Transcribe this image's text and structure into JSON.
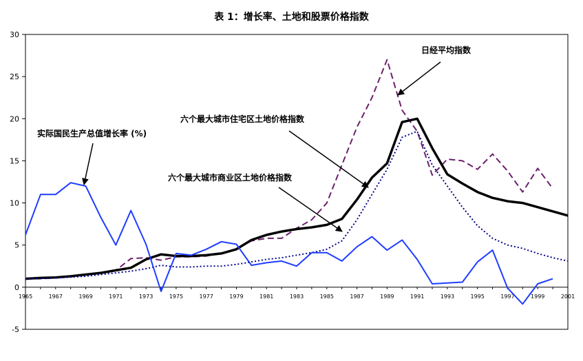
{
  "chart_data": {
    "type": "line",
    "title": "表 1：增长率、土地和股票价格指数",
    "xlabel": "",
    "ylabel": "",
    "ylim": [
      -5,
      30
    ],
    "xlim": [
      1965,
      2001
    ],
    "y_ticks": [
      -5,
      0,
      5,
      10,
      15,
      20,
      25,
      30
    ],
    "x_ticks": [
      "1965",
      "1967",
      "1969",
      "1971",
      "1973",
      "1975",
      "1977",
      "1979",
      "1981",
      "1983",
      "1985",
      "1987",
      "1989",
      "1991",
      "1993",
      "1995",
      "1997",
      "1999",
      "2001"
    ],
    "grid": false,
    "series": [
      {
        "key": "nikkei",
        "color": "#6b1f6b",
        "dash": "dashed",
        "x": [
          1965,
          1966,
          1967,
          1968,
          1969,
          1970,
          1971,
          1972,
          1973,
          1974,
          1975,
          1976,
          1977,
          1978,
          1979,
          1980,
          1981,
          1982,
          1983,
          1984,
          1985,
          1986,
          1987,
          1988,
          1989,
          1990,
          1991,
          1992,
          1993,
          1994,
          1995,
          1996,
          1997,
          1998,
          1999,
          2000
        ],
        "values": [
          1.0,
          1.0,
          1.1,
          1.3,
          1.5,
          1.7,
          2.0,
          3.4,
          3.5,
          3.2,
          3.6,
          3.6,
          3.7,
          4.0,
          4.5,
          5.5,
          5.8,
          5.8,
          7.0,
          8.0,
          10.0,
          14.5,
          19.0,
          22.5,
          27.0,
          21.0,
          18.5,
          13.3,
          15.2,
          15.0,
          14.0,
          15.8,
          13.8,
          11.3,
          14.1,
          11.7
        ]
      },
      {
        "key": "residential",
        "color": "#000000",
        "dash": "solid",
        "x": [
          1965,
          1966,
          1967,
          1968,
          1969,
          1970,
          1971,
          1972,
          1973,
          1974,
          1975,
          1976,
          1977,
          1978,
          1979,
          1980,
          1981,
          1982,
          1983,
          1984,
          1985,
          1986,
          1987,
          1988,
          1989,
          1990,
          1991,
          1992,
          1993,
          1994,
          1995,
          1996,
          1997,
          1998,
          1999,
          2000,
          2001
        ],
        "values": [
          1.0,
          1.1,
          1.15,
          1.3,
          1.5,
          1.7,
          2.0,
          2.3,
          3.3,
          3.9,
          3.7,
          3.7,
          3.8,
          4.0,
          4.5,
          5.6,
          6.2,
          6.6,
          6.9,
          7.1,
          7.4,
          8.1,
          10.4,
          13.0,
          14.7,
          19.6,
          20.0,
          16.5,
          13.4,
          12.3,
          11.3,
          10.6,
          10.2,
          10.0,
          9.5,
          9.0,
          8.5
        ]
      },
      {
        "key": "commercial",
        "color": "#00008b",
        "dash": "dotted",
        "x": [
          1965,
          1966,
          1967,
          1968,
          1969,
          1970,
          1971,
          1972,
          1973,
          1974,
          1975,
          1976,
          1977,
          1978,
          1979,
          1980,
          1981,
          1982,
          1983,
          1984,
          1985,
          1986,
          1987,
          1988,
          1989,
          1990,
          1991,
          1992,
          1993,
          1994,
          1995,
          1996,
          1997,
          1998,
          1999,
          2000,
          2001
        ],
        "values": [
          1.0,
          1.05,
          1.1,
          1.2,
          1.3,
          1.5,
          1.7,
          1.9,
          2.2,
          2.6,
          2.4,
          2.4,
          2.5,
          2.5,
          2.7,
          3.0,
          3.3,
          3.5,
          3.8,
          4.1,
          4.5,
          5.5,
          8.0,
          11.0,
          14.0,
          17.8,
          18.5,
          14.5,
          12.0,
          9.5,
          7.3,
          5.8,
          5.0,
          4.6,
          4.0,
          3.5,
          3.1
        ]
      },
      {
        "key": "gdp",
        "color": "#1e3cff",
        "dash": "solid",
        "x": [
          1965,
          1966,
          1967,
          1968,
          1969,
          1970,
          1971,
          1972,
          1973,
          1974,
          1975,
          1976,
          1977,
          1978,
          1979,
          1980,
          1981,
          1982,
          1983,
          1984,
          1985,
          1986,
          1987,
          1988,
          1989,
          1990,
          1991,
          1992,
          1993,
          1994,
          1995,
          1996,
          1997,
          1998,
          1999,
          2000
        ],
        "values": [
          6.2,
          11.0,
          11.0,
          12.4,
          12.0,
          8.3,
          5.0,
          9.1,
          5.1,
          -0.5,
          4.0,
          3.8,
          4.5,
          5.4,
          5.1,
          2.6,
          2.9,
          3.1,
          2.5,
          4.1,
          4.1,
          3.1,
          4.8,
          6.0,
          4.4,
          5.6,
          3.3,
          0.4,
          0.5,
          0.6,
          3.0,
          4.4,
          -0.1,
          -2.0,
          0.4,
          1.0
        ]
      }
    ],
    "annotations": [
      {
        "key": "nikkei",
        "text": "日经平均指数"
      },
      {
        "key": "residential",
        "text": "六个最大城市住宅区土地价格指数"
      },
      {
        "key": "gdp",
        "text": "实际国民生产总值增长率 (%)"
      },
      {
        "key": "commercial",
        "text": "六个最大城市商业区土地价格指数"
      }
    ]
  }
}
